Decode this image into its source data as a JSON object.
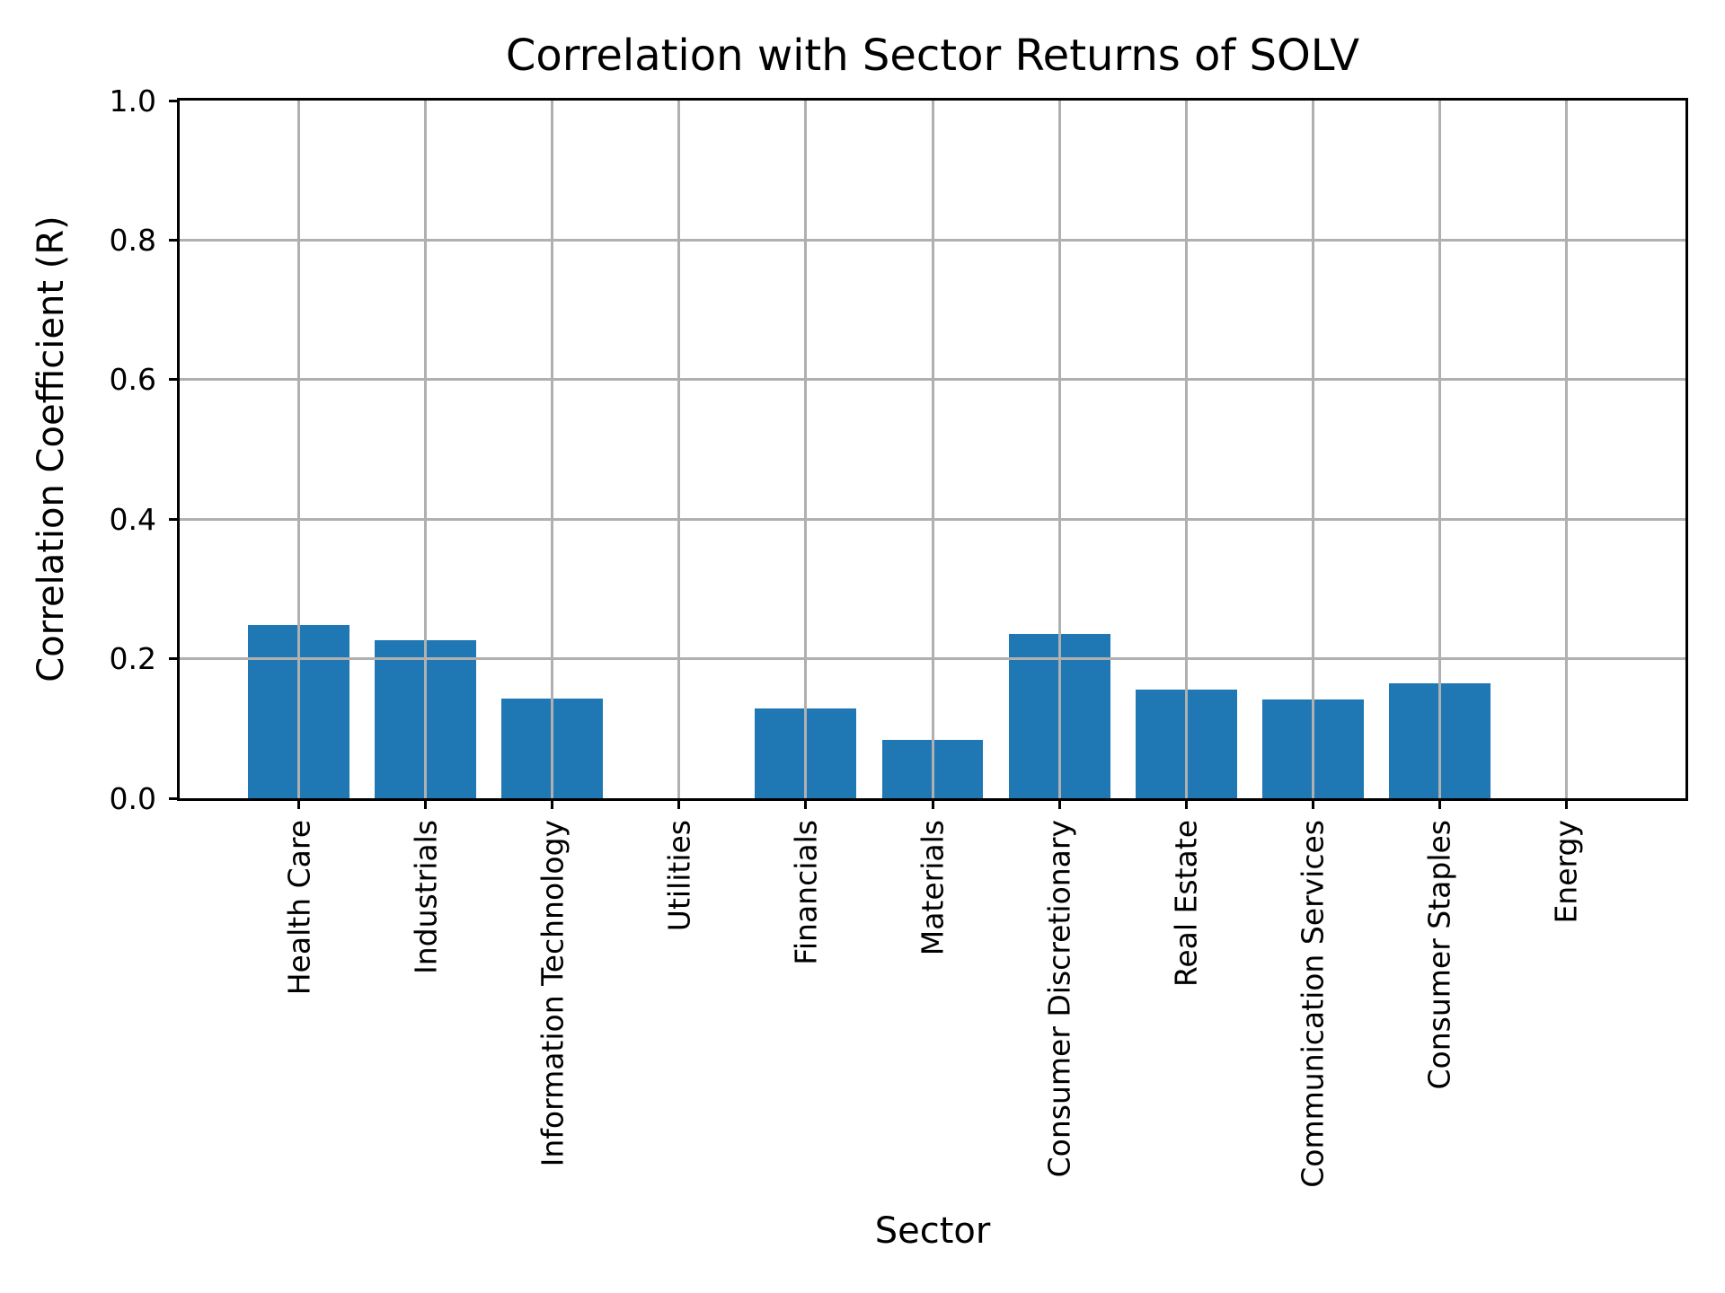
{
  "title": "Correlation with Sector Returns of SOLV",
  "chart_data": {
    "type": "bar",
    "title": "Correlation with Sector Returns of SOLV",
    "xlabel": "Sector",
    "ylabel": "Correlation Coefficient (R)",
    "categories": [
      "Health Care",
      "Industrials",
      "Information Technology",
      "Utilities",
      "Financials",
      "Materials",
      "Consumer Discretionary",
      "Real Estate",
      "Communication Services",
      "Consumer Staples",
      "Energy"
    ],
    "values": [
      0.248,
      0.226,
      0.143,
      0.0,
      0.129,
      0.084,
      0.235,
      0.156,
      0.141,
      0.165,
      0.0
    ],
    "ylim": [
      0.0,
      1.0
    ],
    "yticks": [
      0.0,
      0.2,
      0.4,
      0.6,
      0.8,
      1.0
    ],
    "ytick_labels": [
      "0.0",
      "0.2",
      "0.4",
      "0.6",
      "0.8",
      "1.0"
    ],
    "grid": true,
    "grid_on_top": true,
    "legend_position": "none",
    "bar_color": "#1f77b4",
    "grid_color": "#b0b0b0",
    "axis_color": "#000000",
    "bar_width_fraction": 0.8,
    "x_edge_padding_units": 0.94
  }
}
